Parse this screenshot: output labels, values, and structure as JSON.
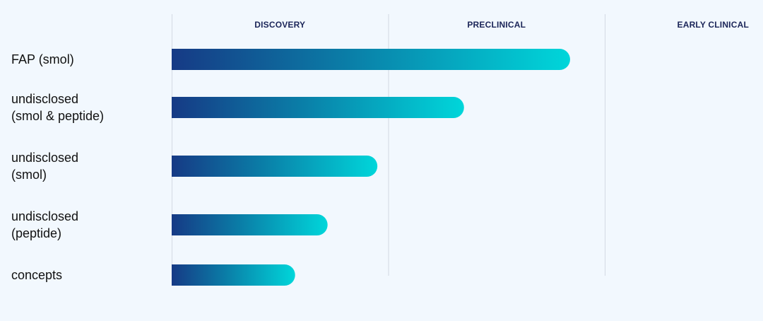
{
  "colors": {
    "background": "#f2f8fe",
    "bar_gradient_start": "#163a85",
    "bar_gradient_mid": "#0a7fa8",
    "bar_gradient_end": "#00d6da",
    "divider": "#d3d9e3",
    "phase_text": "#1b2558",
    "label_text": "#111111"
  },
  "chart_data": {
    "type": "bar",
    "orientation": "horizontal",
    "title": "",
    "xlabel": "",
    "ylabel": "",
    "stages": [
      "DISCOVERY",
      "PRECLINICAL",
      "EARLY CLINICAL"
    ],
    "xlim": [
      0,
      3
    ],
    "grid": true,
    "legend": "none",
    "categories": [
      [
        "FAP (smol)"
      ],
      [
        "undisclosed",
        "(smol & peptide)"
      ],
      [
        "undisclosed",
        "(smol)"
      ],
      [
        "undisclosed",
        "(peptide)"
      ],
      [
        "concepts"
      ]
    ],
    "values": [
      1.84,
      1.35,
      0.95,
      0.72,
      0.57
    ]
  }
}
